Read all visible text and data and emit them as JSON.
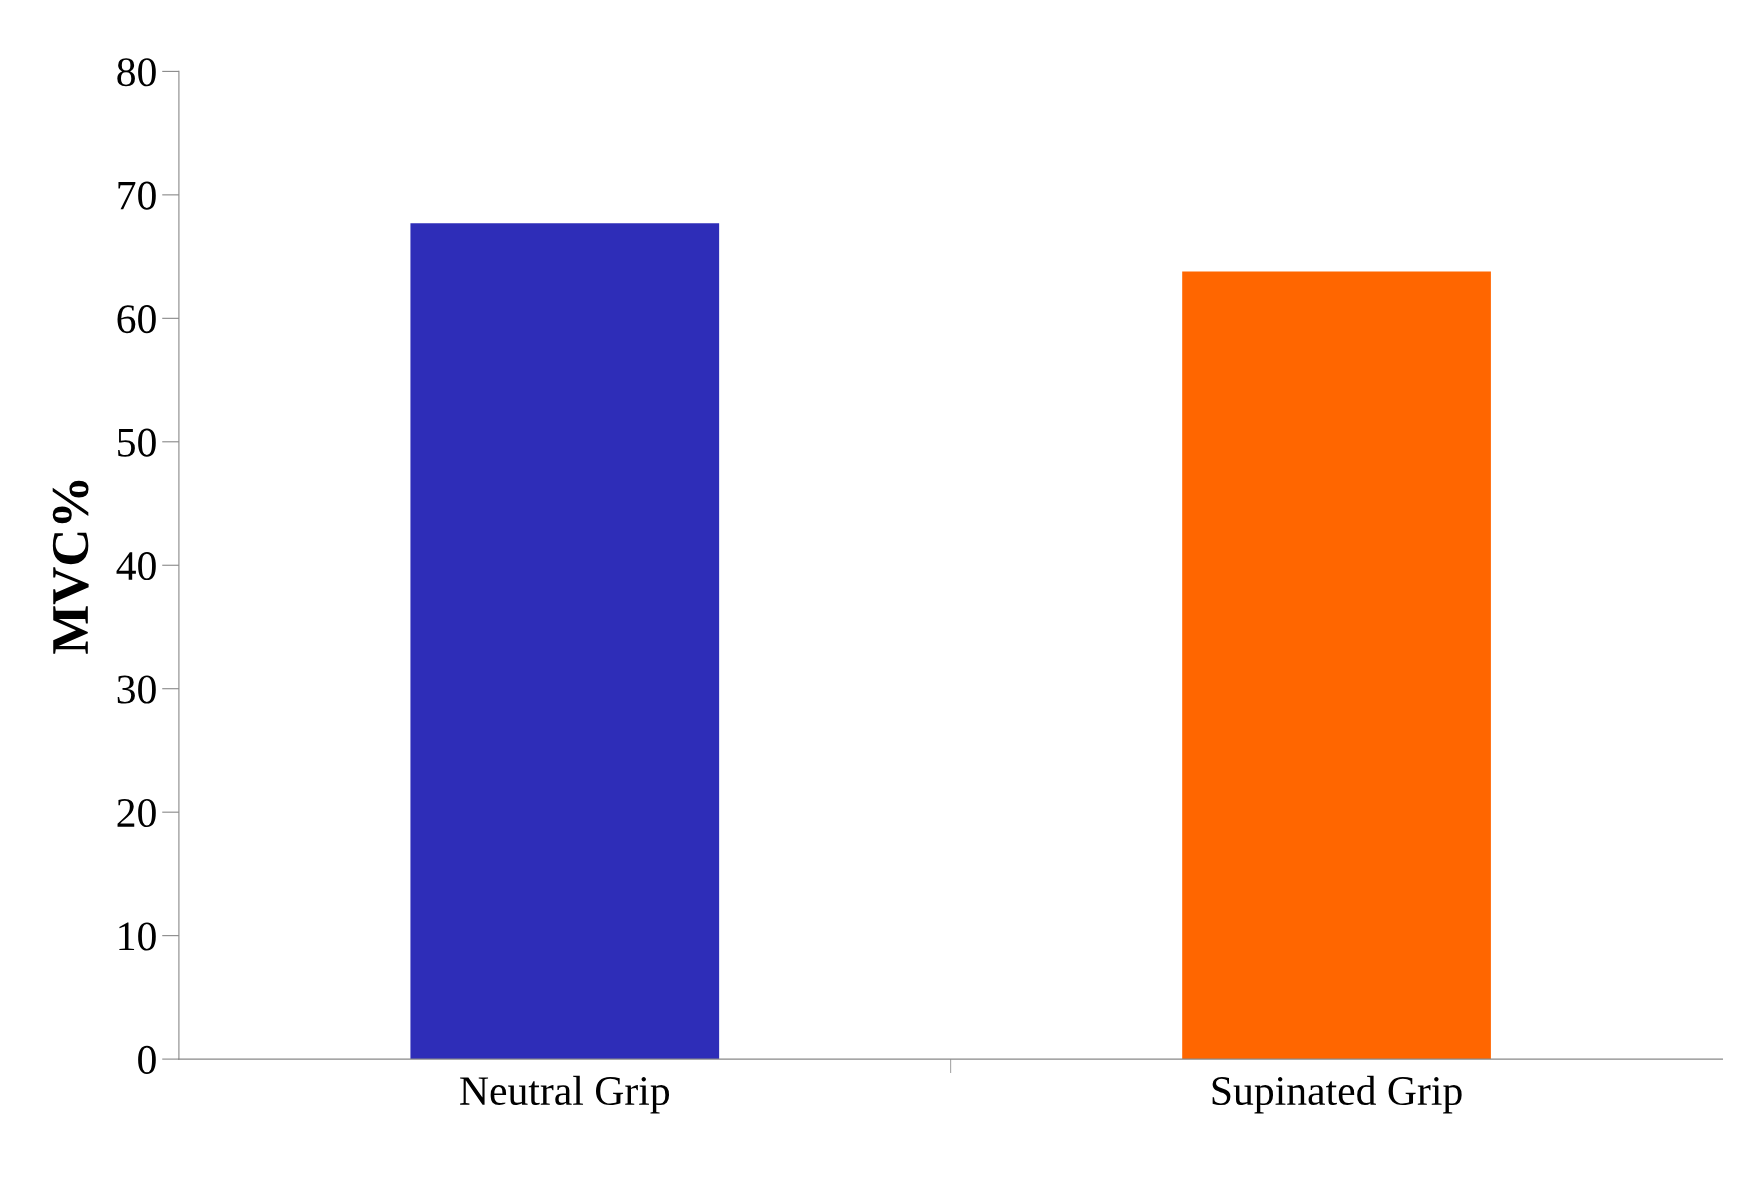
{
  "chart_data": {
    "type": "bar",
    "ylabel": "MVC%",
    "categories": [
      "Neutral Grip",
      "Supinated Grip"
    ],
    "values": [
      67.7,
      63.8
    ],
    "colors": [
      "#2e2db8",
      "#ff6600"
    ],
    "ylim": [
      0,
      80
    ],
    "yticks": [
      0,
      10,
      20,
      30,
      40,
      50,
      60,
      70,
      80
    ],
    "grid": false
  }
}
